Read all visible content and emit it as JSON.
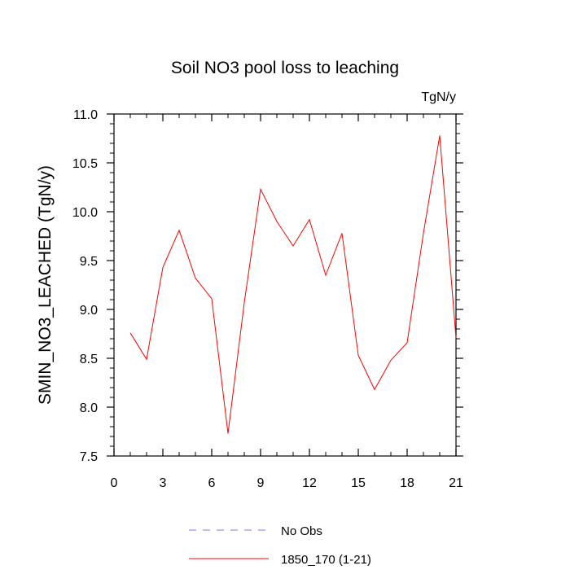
{
  "chart_data": {
    "type": "line",
    "title": "Soil NO3 pool loss to leaching",
    "units_label": "TgN/y",
    "ylabel": "SMIN_NO3_LEACHED  (TgN/y)",
    "xlabel": "",
    "xlim": [
      0,
      21
    ],
    "ylim": [
      7.5,
      11.0
    ],
    "x_ticks": [
      0,
      3,
      6,
      9,
      12,
      15,
      18,
      21
    ],
    "y_ticks": [
      "7.5",
      "8.0",
      "8.5",
      "9.0",
      "9.5",
      "10.0",
      "10.5",
      "11.0"
    ],
    "grid": false,
    "legend_position": "bottom",
    "series": [
      {
        "name": "1850_170 (1-21)",
        "color": "#ff0000",
        "x": [
          1,
          2,
          3,
          4,
          5,
          6,
          7,
          8,
          9,
          10,
          11,
          12,
          13,
          14,
          15,
          16,
          17,
          18,
          19,
          20,
          21
        ],
        "values": [
          8.76,
          8.49,
          9.43,
          9.81,
          9.32,
          9.11,
          7.73,
          9.07,
          10.23,
          9.9,
          9.65,
          9.92,
          9.35,
          9.78,
          8.53,
          8.18,
          8.48,
          8.66,
          9.78,
          10.78,
          8.71
        ]
      }
    ],
    "legend": [
      {
        "label": "No Obs",
        "color": "#7777ff",
        "style": "dashed"
      },
      {
        "label": "1850_170 (1-21)",
        "color": "#ff0000",
        "style": "solid"
      }
    ]
  }
}
